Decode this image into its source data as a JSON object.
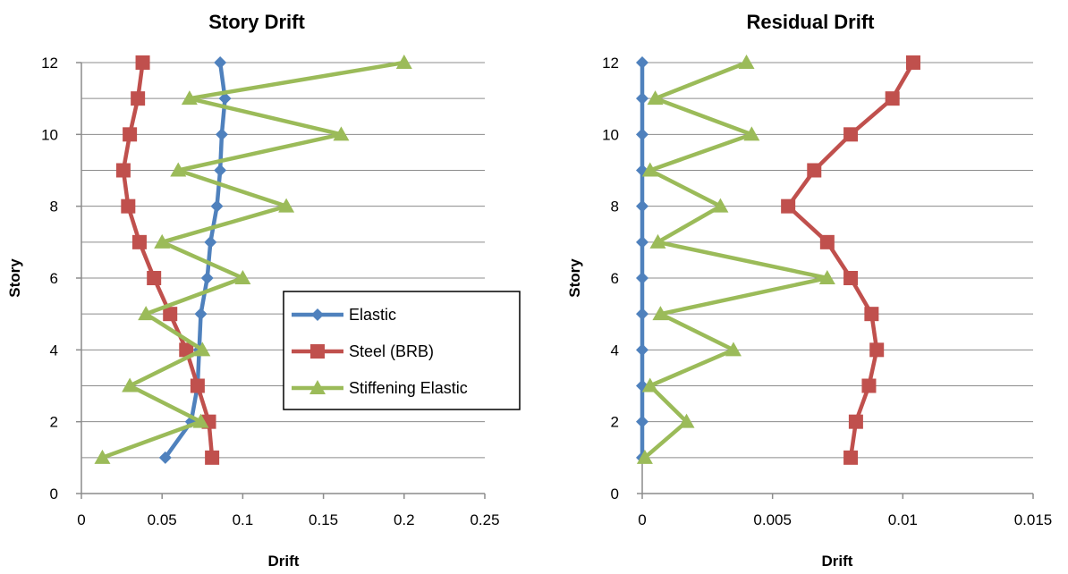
{
  "legend": {
    "items": [
      "Elastic",
      "Steel (BRB)",
      "Stiffening Elastic"
    ]
  },
  "chart_data": [
    {
      "type": "line",
      "title": "Story Drift",
      "xlabel": "Drift",
      "ylabel": "Story",
      "xlim": [
        0,
        0.25
      ],
      "ylim": [
        0,
        12
      ],
      "xticks": [
        "0",
        "0.05",
        "0.1",
        "0.15",
        "0.2",
        "0.25"
      ],
      "yticks": [
        "0",
        "2",
        "4",
        "6",
        "8",
        "10",
        "12"
      ],
      "grid": "horizontal",
      "legend_position": "right",
      "series": [
        {
          "name": "Elastic",
          "color": "#4F81BD",
          "marker": "diamond",
          "points": [
            [
              0.052,
              1
            ],
            [
              0.068,
              2
            ],
            [
              0.072,
              3
            ],
            [
              0.073,
              4
            ],
            [
              0.074,
              5
            ],
            [
              0.078,
              6
            ],
            [
              0.08,
              7
            ],
            [
              0.084,
              8
            ],
            [
              0.086,
              9
            ],
            [
              0.087,
              10
            ],
            [
              0.089,
              11
            ],
            [
              0.086,
              12
            ]
          ]
        },
        {
          "name": "Steel (BRB)",
          "color": "#C0504D",
          "marker": "square",
          "points": [
            [
              0.081,
              1
            ],
            [
              0.079,
              2
            ],
            [
              0.072,
              3
            ],
            [
              0.065,
              4
            ],
            [
              0.055,
              5
            ],
            [
              0.045,
              6
            ],
            [
              0.036,
              7
            ],
            [
              0.029,
              8
            ],
            [
              0.026,
              9
            ],
            [
              0.03,
              10
            ],
            [
              0.035,
              11
            ],
            [
              0.038,
              12
            ]
          ]
        },
        {
          "name": "Stiffening Elastic",
          "color": "#9BBB59",
          "marker": "triangle",
          "points": [
            [
              0.013,
              1
            ],
            [
              0.074,
              2
            ],
            [
              0.03,
              3
            ],
            [
              0.075,
              4
            ],
            [
              0.04,
              5
            ],
            [
              0.1,
              6
            ],
            [
              0.05,
              7
            ],
            [
              0.127,
              8
            ],
            [
              0.06,
              9
            ],
            [
              0.161,
              10
            ],
            [
              0.067,
              11
            ],
            [
              0.2,
              12
            ]
          ]
        }
      ]
    },
    {
      "type": "line",
      "title": "Residual Drift",
      "xlabel": "Drift",
      "ylabel": "Story",
      "xlim": [
        0,
        0.015
      ],
      "ylim": [
        0,
        12
      ],
      "xticks": [
        "0",
        "0.005",
        "0.01",
        "0.015"
      ],
      "yticks": [
        "0",
        "2",
        "4",
        "6",
        "8",
        "10",
        "12"
      ],
      "grid": "horizontal",
      "series": [
        {
          "name": "Elastic",
          "color": "#4F81BD",
          "marker": "diamond",
          "points": [
            [
              0,
              1
            ],
            [
              0,
              2
            ],
            [
              0,
              3
            ],
            [
              0,
              4
            ],
            [
              0,
              5
            ],
            [
              0,
              6
            ],
            [
              0,
              7
            ],
            [
              0,
              8
            ],
            [
              0,
              9
            ],
            [
              0,
              10
            ],
            [
              0,
              11
            ],
            [
              0,
              12
            ]
          ]
        },
        {
          "name": "Steel (BRB)",
          "color": "#C0504D",
          "marker": "square",
          "points": [
            [
              0.008,
              1
            ],
            [
              0.0082,
              2
            ],
            [
              0.0087,
              3
            ],
            [
              0.009,
              4
            ],
            [
              0.0088,
              5
            ],
            [
              0.008,
              6
            ],
            [
              0.0071,
              7
            ],
            [
              0.0056,
              8
            ],
            [
              0.0066,
              9
            ],
            [
              0.008,
              10
            ],
            [
              0.0096,
              11
            ],
            [
              0.0104,
              12
            ]
          ]
        },
        {
          "name": "Stiffening Elastic",
          "color": "#9BBB59",
          "marker": "triangle",
          "points": [
            [
              0.0001,
              1
            ],
            [
              0.0017,
              2
            ],
            [
              0.0003,
              3
            ],
            [
              0.0035,
              4
            ],
            [
              0.0007,
              5
            ],
            [
              0.0071,
              6
            ],
            [
              0.0006,
              7
            ],
            [
              0.003,
              8
            ],
            [
              0.0003,
              9
            ],
            [
              0.0042,
              10
            ],
            [
              0.0005,
              11
            ],
            [
              0.004,
              12
            ]
          ]
        }
      ]
    }
  ]
}
